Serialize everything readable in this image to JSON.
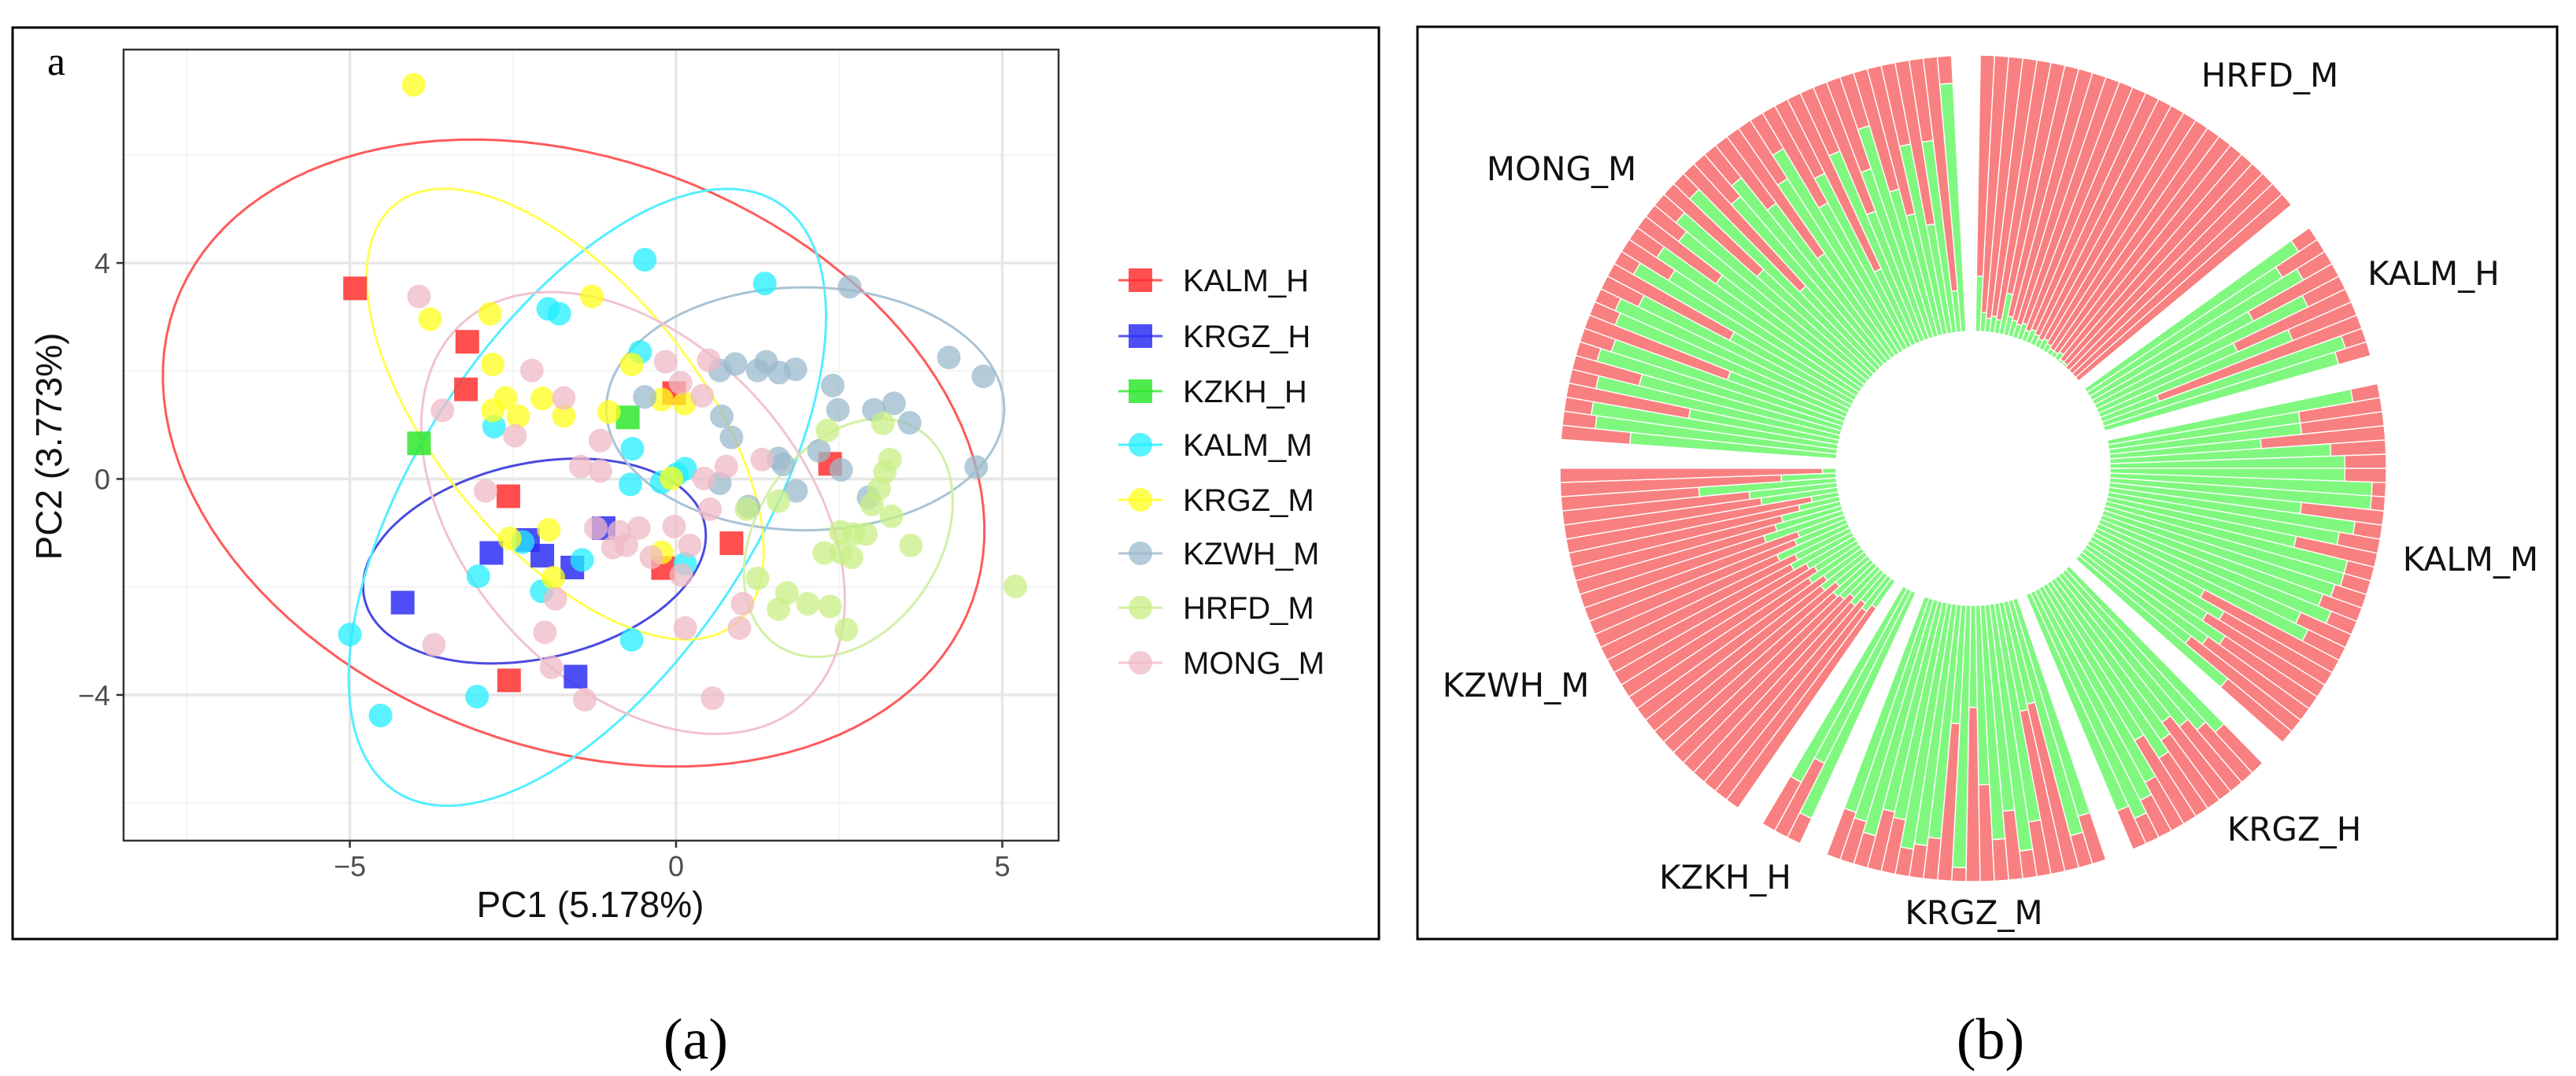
{
  "figure": {
    "panel_a_tag": "a",
    "panel_a_caption": "(a)",
    "panel_b_caption": "(b)"
  },
  "chart_data": [
    {
      "type": "scatter",
      "xlabel": "PC1 (5.178%)",
      "ylabel": "PC2 (3.773%)",
      "xlim": [
        -8.47,
        5.86
      ],
      "ylim": [
        -6.7,
        7.95
      ],
      "xticks": [
        -5,
        0,
        5
      ],
      "xtick_labels": [
        "−5",
        "0",
        "5"
      ],
      "yticks": [
        -4,
        0,
        4
      ],
      "ytick_labels": [
        "−4",
        "0",
        "4"
      ],
      "grid": true,
      "legend_position": "right",
      "series": [
        {
          "name": "KALM_H",
          "marker": "square",
          "color": "#ff3030",
          "ellipse_color": "#ff5a5a",
          "ellipse": {
            "center": [
              -1.57,
              0.48
            ],
            "axis1": [
              5.35,
              -4.18
            ],
            "axis2": [
              -3.32,
              -4.03
            ]
          },
          "points": [
            [
              -4.92,
              3.53
            ],
            [
              -3.2,
              2.54
            ],
            [
              -3.22,
              1.66
            ],
            [
              -2.57,
              -0.32
            ],
            [
              -2.56,
              -3.73
            ],
            [
              -0.03,
              1.59
            ],
            [
              -0.2,
              -1.65
            ],
            [
              0.85,
              -1.19
            ],
            [
              2.36,
              0.28
            ]
          ]
        },
        {
          "name": "KRGZ_H",
          "marker": "square",
          "color": "#2f2ff5",
          "ellipse_color": "#4a4ae0",
          "ellipse": {
            "center": [
              -2.17,
              -1.52
            ],
            "axis1": [
              2.55,
              0.9
            ],
            "axis2": [
              0.63,
              -1.67
            ]
          },
          "points": [
            [
              -4.19,
              -2.29
            ],
            [
              -2.83,
              -1.37
            ],
            [
              -2.27,
              -1.13
            ],
            [
              -2.05,
              -1.42
            ],
            [
              -1.59,
              -1.64
            ],
            [
              -1.11,
              -0.91
            ],
            [
              -1.54,
              -3.66
            ]
          ]
        },
        {
          "name": "KZKH_H",
          "marker": "square",
          "color": "#2ee82e",
          "ellipse_color": "#2ee82e",
          "ellipse": null,
          "points": [
            [
              -3.94,
              0.66
            ],
            [
              -0.74,
              1.14
            ]
          ]
        },
        {
          "name": "KALM_M",
          "marker": "circle",
          "color": "#22eeff",
          "ellipse_color": "#55eeff",
          "ellipse": {
            "center": [
              -1.36,
              -0.34
            ],
            "axis1": [
              2.69,
              5.6
            ],
            "axis2": [
              2.48,
              -1.13
            ]
          },
          "points": [
            [
              -0.48,
              4.06
            ],
            [
              1.36,
              3.62
            ],
            [
              -1.96,
              3.15
            ],
            [
              -1.79,
              3.06
            ],
            [
              -0.55,
              2.35
            ],
            [
              -2.79,
              0.97
            ],
            [
              -0.67,
              0.56
            ],
            [
              -0.7,
              -0.1
            ],
            [
              -0.22,
              -0.06
            ],
            [
              0.14,
              0.19
            ],
            [
              0.01,
              0.09
            ],
            [
              -2.35,
              -1.17
            ],
            [
              -3.03,
              -1.8
            ],
            [
              -2.06,
              -2.08
            ],
            [
              -1.44,
              -1.5
            ],
            [
              -0.68,
              -2.98
            ],
            [
              0.14,
              -1.57
            ],
            [
              -3.05,
              -4.03
            ],
            [
              -5.0,
              -2.88
            ],
            [
              -4.53,
              -4.38
            ]
          ]
        },
        {
          "name": "KRGZ_M",
          "marker": "circle",
          "color": "#ffff1a",
          "ellipse_color": "#ffff55",
          "ellipse": {
            "center": [
              -1.7,
              1.2
            ],
            "axis1": [
              2.4,
              -4.04
            ],
            "axis2": [
              -1.87,
              -1.05
            ]
          },
          "points": [
            [
              -4.02,
              7.3
            ],
            [
              -3.77,
              2.96
            ],
            [
              -2.85,
              3.06
            ],
            [
              -1.29,
              3.38
            ],
            [
              -2.81,
              2.12
            ],
            [
              -0.68,
              2.12
            ],
            [
              -2.61,
              1.5
            ],
            [
              -2.05,
              1.49
            ],
            [
              -1.72,
              1.17
            ],
            [
              -2.81,
              1.27
            ],
            [
              -2.42,
              1.16
            ],
            [
              -1.03,
              1.24
            ],
            [
              -0.22,
              1.47
            ],
            [
              0.13,
              1.4
            ],
            [
              -0.07,
              0.01
            ],
            [
              -1.95,
              -0.94
            ],
            [
              -2.55,
              -1.1
            ],
            [
              -1.88,
              -1.83
            ],
            [
              -0.22,
              -1.36
            ]
          ]
        },
        {
          "name": "KZWH_M",
          "marker": "circle",
          "color": "#9bb9cc",
          "ellipse_color": "#a9c3d4",
          "ellipse": {
            "center": [
              1.98,
              1.3
            ],
            "axis1": [
              3.05,
              0.0
            ],
            "axis2": [
              0.0,
              2.25
            ]
          },
          "points": [
            [
              2.66,
              3.56
            ],
            [
              4.18,
              2.25
            ],
            [
              4.71,
              1.9
            ],
            [
              0.67,
              2.01
            ],
            [
              0.91,
              2.13
            ],
            [
              1.38,
              2.17
            ],
            [
              1.58,
              1.97
            ],
            [
              1.83,
              2.03
            ],
            [
              1.25,
              2.01
            ],
            [
              2.4,
              1.73
            ],
            [
              2.48,
              1.28
            ],
            [
              3.03,
              1.28
            ],
            [
              3.34,
              1.4
            ],
            [
              3.58,
              1.04
            ],
            [
              0.7,
              1.16
            ],
            [
              0.85,
              0.77
            ],
            [
              1.57,
              0.38
            ],
            [
              1.64,
              0.27
            ],
            [
              1.84,
              -0.22
            ],
            [
              2.19,
              0.52
            ],
            [
              2.53,
              0.17
            ],
            [
              2.95,
              -0.34
            ],
            [
              4.6,
              0.22
            ],
            [
              1.11,
              -0.51
            ],
            [
              0.67,
              -0.08
            ],
            [
              -0.48,
              1.52
            ]
          ]
        },
        {
          "name": "HRFD_M",
          "marker": "circle",
          "color": "#c8ef86",
          "ellipse_color": "#d2f0a6",
          "ellipse": {
            "center": [
              2.64,
              -1.09
            ],
            "axis1": [
              0.81,
              2.15
            ],
            "axis2": [
              1.38,
              -0.49
            ]
          },
          "points": [
            [
              5.2,
              -1.99
            ],
            [
              2.32,
              0.9
            ],
            [
              3.17,
              1.03
            ],
            [
              3.28,
              0.36
            ],
            [
              3.2,
              0.13
            ],
            [
              3.11,
              -0.18
            ],
            [
              3.0,
              -0.47
            ],
            [
              3.3,
              -0.69
            ],
            [
              3.6,
              -1.23
            ],
            [
              2.52,
              -0.98
            ],
            [
              2.72,
              -1.02
            ],
            [
              2.91,
              -1.02
            ],
            [
              2.52,
              -1.36
            ],
            [
              2.69,
              -1.45
            ],
            [
              2.27,
              -1.37
            ],
            [
              1.57,
              -0.41
            ],
            [
              1.08,
              -0.56
            ],
            [
              1.25,
              -1.84
            ],
            [
              1.7,
              -2.11
            ],
            [
              1.57,
              -2.41
            ],
            [
              2.02,
              -2.31
            ],
            [
              2.36,
              -2.36
            ],
            [
              2.61,
              -2.79
            ]
          ]
        },
        {
          "name": "MONG_M",
          "marker": "circle",
          "color": "#efbac6",
          "ellipse_color": "#f0c4ce",
          "ellipse": {
            "center": [
              -0.66,
              -0.63
            ],
            "axis1": [
              2.13,
              -3.89
            ],
            "axis2": [
              -2.45,
              -1.27
            ]
          },
          "points": [
            [
              -3.94,
              3.38
            ],
            [
              -3.58,
              1.27
            ],
            [
              -2.21,
              2.01
            ],
            [
              -2.47,
              0.8
            ],
            [
              -1.72,
              1.5
            ],
            [
              -1.16,
              0.71
            ],
            [
              -1.46,
              0.23
            ],
            [
              -1.16,
              0.15
            ],
            [
              -2.92,
              -0.22
            ],
            [
              -0.16,
              2.17
            ],
            [
              0.07,
              1.78
            ],
            [
              0.5,
              2.2
            ],
            [
              0.4,
              1.54
            ],
            [
              0.77,
              0.23
            ],
            [
              0.43,
              0.01
            ],
            [
              0.52,
              -0.56
            ],
            [
              -1.23,
              -0.91
            ],
            [
              -0.87,
              -0.98
            ],
            [
              -0.97,
              -1.27
            ],
            [
              -0.76,
              -1.23
            ],
            [
              -0.57,
              -0.91
            ],
            [
              -0.03,
              -0.88
            ],
            [
              0.21,
              -1.23
            ],
            [
              -0.38,
              -1.45
            ],
            [
              0.08,
              -1.78
            ],
            [
              -1.85,
              -2.22
            ],
            [
              -2.01,
              -2.84
            ],
            [
              -3.71,
              -3.07
            ],
            [
              -1.91,
              -3.49
            ],
            [
              -1.4,
              -4.09
            ],
            [
              0.14,
              -2.76
            ],
            [
              0.97,
              -2.76
            ],
            [
              1.02,
              -2.31
            ],
            [
              0.56,
              -4.06
            ],
            [
              1.32,
              0.36
            ]
          ]
        }
      ]
    },
    {
      "type": "bar",
      "subtype": "circular stacked (ancestry proportions, K=2)",
      "value_meaning": "red ancestry fraction per individual (green = 1 - red)",
      "colors": {
        "red_component": "#f88080",
        "green_component": "#80f880"
      },
      "categories": [
        {
          "name": "HRFD_M",
          "red": [
            0.8,
            0.93,
            0.95,
            0.94,
            0.95,
            0.85,
            0.93,
            0.94,
            0.95,
            0.94,
            0.96,
            0.95,
            0.96,
            0.97,
            0.96,
            0.97,
            0.98,
            0.98,
            0.97,
            0.99,
            0.99,
            1,
            1,
            1,
            1
          ]
        },
        {
          "name": "KALM_H",
          "red": [
            0.08,
            0.18,
            0.12,
            0.35,
            0.15,
            0.45,
            0.25,
            0.78,
            0.08,
            0.12
          ]
        },
        {
          "name": "KALM_M",
          "red": [
            0.1,
            0.3,
            0.3,
            0.45,
            0.2,
            0.15,
            0.15,
            0.05,
            0.05,
            0.3,
            0.1,
            0.15,
            0.3,
            0.1,
            0.1,
            0.12,
            0.15,
            0.1,
            0.2,
            0.15,
            0.55,
            0.45,
            0.5,
            0.4,
            0.45,
            0.5,
            0.3
          ]
        },
        {
          "name": "KRGZ_H",
          "red": [
            0.2,
            0.25,
            0.3,
            0.35,
            0.3,
            0.25,
            0.35,
            0.2,
            0.15,
            0.1,
            0.15
          ]
        },
        {
          "name": "KRGZ_M",
          "red": [
            0.18,
            0.12,
            0.62,
            0.6,
            0.2,
            0.1,
            0.25,
            0.15,
            0.35,
            0.63,
            0.05,
            0.57,
            0.15,
            0.12,
            0.1,
            0.2,
            0.22,
            0.12,
            0.16,
            0.18
          ]
        },
        {
          "name": "KZKH_H",
          "red": [
            0.1,
            0.3,
            0.2
          ]
        },
        {
          "name": "KZWH_M",
          "red": [
            0.88,
            0.85,
            0.87,
            0.84,
            0.86,
            0.83,
            0.82,
            0.85,
            0.8,
            0.83,
            0.78,
            0.82,
            0.8,
            0.75,
            0.78,
            0.72,
            0.8,
            0.82,
            0.7,
            0.75,
            0.78,
            0.85,
            0.9,
            0.72,
            0.68,
            0.5,
            0.8,
            0.95
          ]
        },
        {
          "name": "MONG_M",
          "red": [
            0.25,
            0.12,
            0.1,
            0.45,
            0.1,
            0.25,
            0.08,
            0.12,
            0.55,
            0.1,
            0.08,
            0.15,
            0.5,
            0.08,
            0.2,
            0.12,
            0.35,
            0.15,
            0.1,
            0.45,
            0.08,
            0.6,
            0.2,
            0.15,
            0.3,
            0.55,
            0.25,
            0.15,
            0.4,
            0.3,
            0.7,
            0.25,
            0.5,
            0.35,
            0.2,
            0.45,
            0.55,
            0.3,
            0.6,
            0.3,
            0.85,
            0.1
          ]
        }
      ]
    }
  ]
}
